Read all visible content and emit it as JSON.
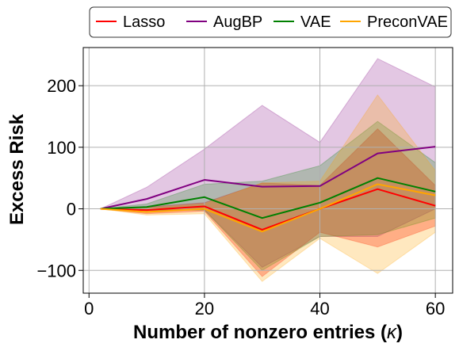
{
  "chart_data": {
    "type": "line",
    "title": "",
    "xlabel": "Number of nonzero entries (",
    "xlabel_symbol": "κ",
    "xlabel_close": ")",
    "ylabel": "Excess Risk",
    "xlim": [
      -1,
      63
    ],
    "ylim": [
      -137,
      262
    ],
    "xticks": [
      0,
      20,
      40,
      60
    ],
    "yticks": [
      -100,
      0,
      100,
      200
    ],
    "ytick_labels": [
      "−100",
      "0",
      "100",
      "200"
    ],
    "grid": true,
    "legend_position": "top",
    "x": [
      2,
      10,
      20,
      30,
      40,
      50,
      60
    ],
    "series": [
      {
        "name": "Lasso",
        "color": "#ff0000",
        "values": [
          0,
          -2,
          4,
          -34,
          0,
          32,
          5
        ],
        "lower": [
          0,
          -8,
          -4,
          -110,
          -38,
          -62,
          -28
        ],
        "upper": [
          0,
          3,
          10,
          42,
          38,
          130,
          38
        ],
        "band_alpha": 0.3
      },
      {
        "name": "AugBP",
        "color": "#800080",
        "values": [
          0,
          16,
          47,
          36,
          37,
          90,
          101
        ],
        "lower": [
          0,
          -2,
          -2,
          -95,
          -45,
          -45,
          0
        ],
        "upper": [
          0,
          35,
          97,
          168,
          108,
          244,
          198
        ],
        "band_alpha": 0.22
      },
      {
        "name": "VAE",
        "color": "#008000",
        "values": [
          0,
          3,
          19,
          -15,
          10,
          50,
          28
        ],
        "lower": [
          0,
          -3,
          -2,
          -100,
          -45,
          -42,
          -15
        ],
        "upper": [
          0,
          8,
          40,
          45,
          70,
          142,
          75
        ],
        "band_alpha": 0.22
      },
      {
        "name": "PreconVAE",
        "color": "#ffa500",
        "values": [
          0,
          -5,
          0,
          -37,
          0,
          40,
          22
        ],
        "lower": [
          0,
          -10,
          -8,
          -118,
          -48,
          -105,
          -38
        ],
        "upper": [
          0,
          1,
          8,
          42,
          45,
          185,
          62
        ],
        "band_alpha": 0.25
      }
    ]
  }
}
